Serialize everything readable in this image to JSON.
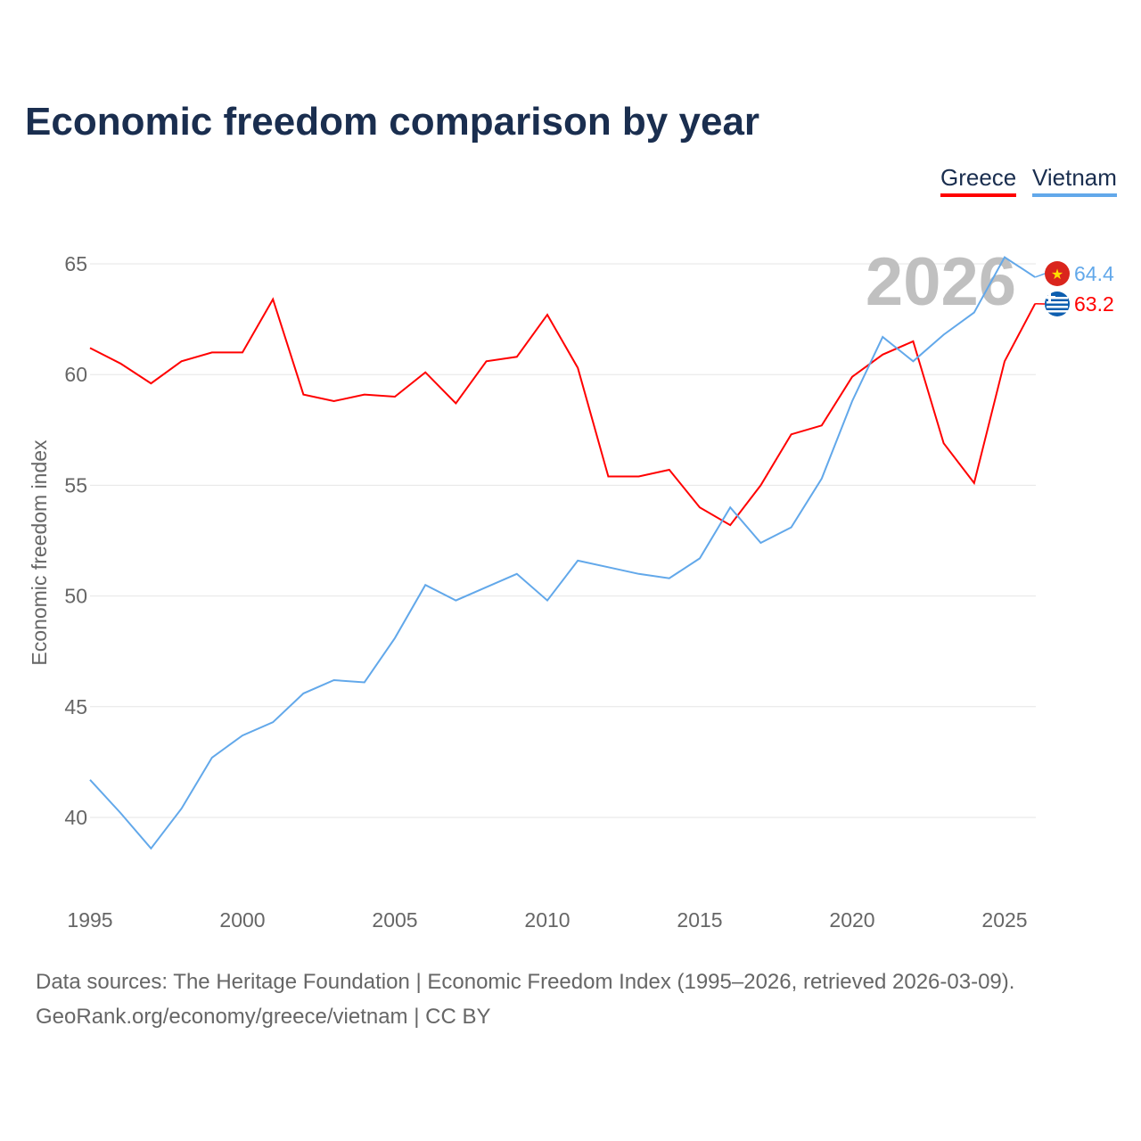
{
  "chart_data": {
    "type": "line",
    "title": "Economic freedom comparison by year",
    "ylabel": "Economic freedom index",
    "xlabel": "",
    "xlim": [
      1995,
      2026
    ],
    "ylim": [
      36.5,
      67
    ],
    "yticks": [
      40,
      45,
      50,
      55,
      60,
      65
    ],
    "xticks": [
      1995,
      2000,
      2005,
      2010,
      2015,
      2020,
      2025
    ],
    "grid": true,
    "legend_position": "top-right",
    "highlight_year": "2026",
    "x": [
      1995,
      1996,
      1997,
      1998,
      1999,
      2000,
      2001,
      2002,
      2003,
      2004,
      2005,
      2006,
      2007,
      2008,
      2009,
      2010,
      2011,
      2012,
      2013,
      2014,
      2015,
      2016,
      2017,
      2018,
      2019,
      2020,
      2021,
      2022,
      2023,
      2024,
      2025,
      2026
    ],
    "series": [
      {
        "name": "Greece",
        "color": "#ff0000",
        "end_label": "63.2",
        "values": [
          61.2,
          60.5,
          59.6,
          60.6,
          61.0,
          61.0,
          63.4,
          59.1,
          58.8,
          59.1,
          59.0,
          60.1,
          58.7,
          60.6,
          60.8,
          62.7,
          60.3,
          55.4,
          55.4,
          55.7,
          54.0,
          53.2,
          55.0,
          57.3,
          57.7,
          59.9,
          60.9,
          61.5,
          56.9,
          55.1,
          60.6,
          63.2
        ]
      },
      {
        "name": "Vietnam",
        "color": "#62a8ea",
        "end_label": "64.4",
        "values": [
          41.7,
          40.2,
          38.6,
          40.4,
          42.7,
          43.7,
          44.3,
          45.6,
          46.2,
          46.1,
          48.1,
          50.5,
          49.8,
          50.4,
          51.0,
          49.8,
          51.6,
          51.3,
          51.0,
          50.8,
          51.7,
          54.0,
          52.4,
          53.1,
          55.3,
          58.8,
          61.7,
          60.6,
          61.8,
          62.8,
          65.3,
          64.4
        ]
      }
    ]
  },
  "footer": {
    "line1": "Data sources: The Heritage Foundation | Economic Freedom Index (1995–2026, retrieved 2026-03-09).",
    "line2": "GeoRank.org/economy/greece/vietnam | CC BY"
  }
}
